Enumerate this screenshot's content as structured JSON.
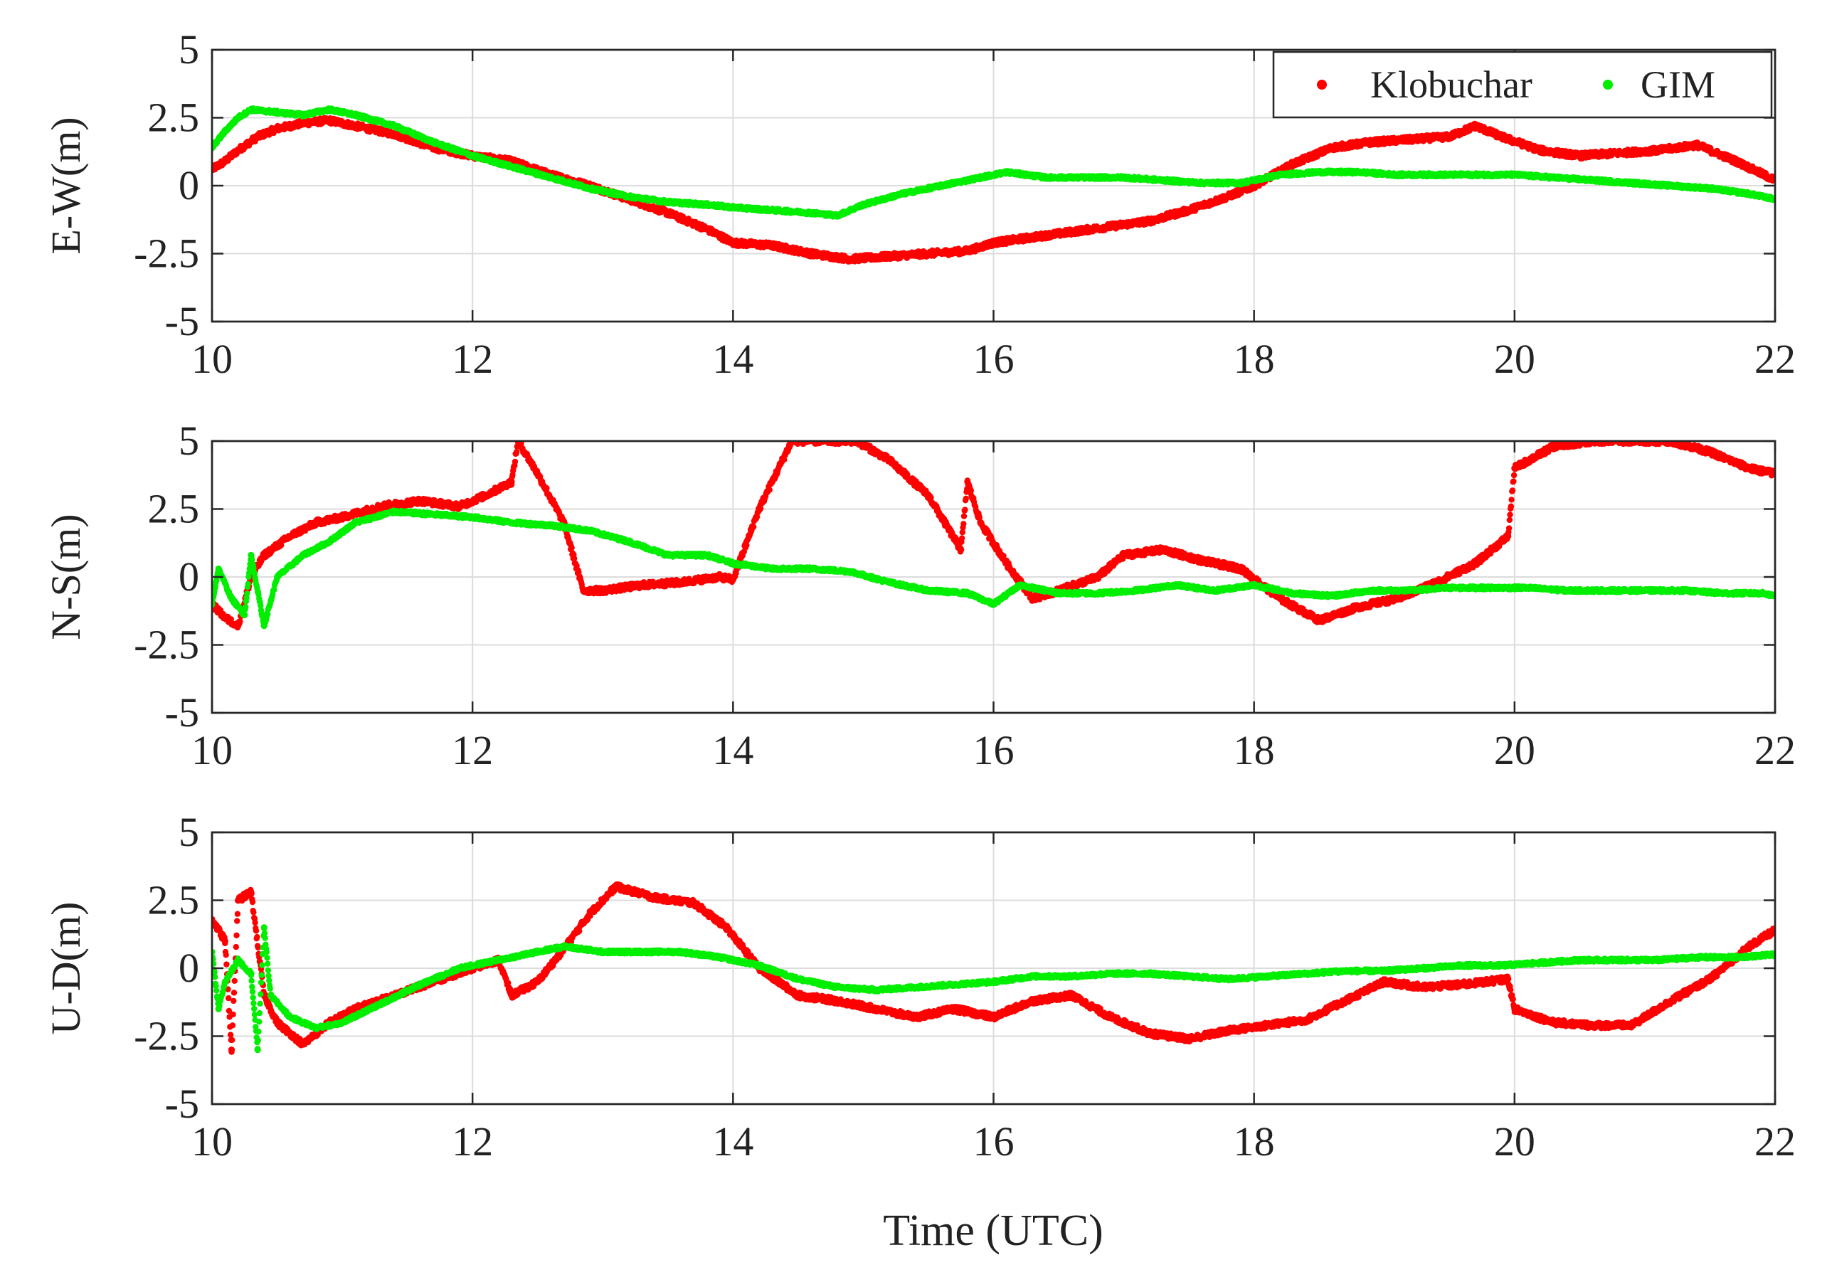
{
  "chart_data": [
    {
      "type": "scatter",
      "panel": "E-W",
      "ylabel": "E-W(m)",
      "xlabel": "",
      "xlim": [
        10,
        22
      ],
      "ylim": [
        -5,
        5
      ],
      "xticks": [
        "10",
        "12",
        "14",
        "16",
        "18",
        "20",
        "22"
      ],
      "yticks": [
        "-5",
        "-2.5",
        "0",
        "2.5",
        "5"
      ],
      "grid": true,
      "legend": {
        "position": "top-right",
        "entries": [
          "Klobuchar",
          "GIM"
        ]
      },
      "series": [
        {
          "name": "Klobuchar",
          "color": "#ff0000",
          "x": [
            10.0,
            10.1,
            10.2,
            10.35,
            10.5,
            10.7,
            10.9,
            11.1,
            11.4,
            11.7,
            12.0,
            12.3,
            12.6,
            12.9,
            13.2,
            13.5,
            13.8,
            14.0,
            14.3,
            14.6,
            14.9,
            15.2,
            15.5,
            15.8,
            16.0,
            16.3,
            16.6,
            16.9,
            17.2,
            17.5,
            17.8,
            18.0,
            18.3,
            18.6,
            18.9,
            19.2,
            19.5,
            19.7,
            19.9,
            20.2,
            20.5,
            20.8,
            21.1,
            21.4,
            21.7,
            22.0
          ],
          "y": [
            0.6,
            0.9,
            1.3,
            1.8,
            2.1,
            2.3,
            2.4,
            2.2,
            1.9,
            1.4,
            1.1,
            0.9,
            0.4,
            0.0,
            -0.5,
            -1.0,
            -1.6,
            -2.1,
            -2.2,
            -2.5,
            -2.7,
            -2.6,
            -2.5,
            -2.4,
            -2.1,
            -1.9,
            -1.7,
            -1.5,
            -1.3,
            -0.9,
            -0.4,
            0.0,
            0.8,
            1.4,
            1.6,
            1.7,
            1.8,
            2.2,
            1.8,
            1.3,
            1.1,
            1.2,
            1.3,
            1.5,
            0.9,
            0.2
          ]
        },
        {
          "name": "GIM",
          "color": "#00ee00",
          "x": [
            10.0,
            10.1,
            10.2,
            10.3,
            10.5,
            10.7,
            10.9,
            11.1,
            11.4,
            11.7,
            12.0,
            12.3,
            12.6,
            12.9,
            13.2,
            13.5,
            13.8,
            14.0,
            14.3,
            14.6,
            14.8,
            15.0,
            15.3,
            15.6,
            15.9,
            16.1,
            16.4,
            16.7,
            17.0,
            17.3,
            17.6,
            17.9,
            18.2,
            18.5,
            18.8,
            19.1,
            19.4,
            19.7,
            20.0,
            20.3,
            20.6,
            20.9,
            21.2,
            21.5,
            21.8,
            22.0
          ],
          "y": [
            1.4,
            2.0,
            2.5,
            2.8,
            2.7,
            2.6,
            2.8,
            2.6,
            2.2,
            1.6,
            1.1,
            0.7,
            0.3,
            -0.1,
            -0.4,
            -0.6,
            -0.7,
            -0.8,
            -0.9,
            -1.0,
            -1.1,
            -0.7,
            -0.3,
            0.0,
            0.3,
            0.5,
            0.3,
            0.3,
            0.3,
            0.2,
            0.1,
            0.1,
            0.4,
            0.5,
            0.5,
            0.4,
            0.4,
            0.4,
            0.4,
            0.3,
            0.2,
            0.1,
            0.0,
            -0.1,
            -0.3,
            -0.5
          ]
        }
      ]
    },
    {
      "type": "scatter",
      "panel": "N-S",
      "ylabel": "N-S(m)",
      "xlabel": "",
      "xlim": [
        10,
        22
      ],
      "ylim": [
        -5,
        5
      ],
      "xticks": [
        "10",
        "12",
        "14",
        "16",
        "18",
        "20",
        "22"
      ],
      "yticks": [
        "-5",
        "-2.5",
        "0",
        "2.5",
        "5"
      ],
      "grid": true,
      "series": [
        {
          "name": "Klobuchar",
          "color": "#ff0000",
          "x": [
            10.0,
            10.1,
            10.2,
            10.3,
            10.4,
            10.6,
            10.8,
            11.0,
            11.3,
            11.6,
            11.9,
            12.1,
            12.3,
            12.35,
            12.5,
            12.7,
            12.85,
            13.0,
            13.3,
            13.6,
            13.9,
            14.0,
            14.2,
            14.45,
            14.95,
            15.2,
            15.5,
            15.75,
            15.8,
            15.9,
            16.1,
            16.3,
            16.5,
            16.8,
            17.0,
            17.3,
            17.6,
            17.9,
            18.2,
            18.5,
            18.8,
            19.1,
            19.4,
            19.7,
            19.95,
            20.0,
            20.3,
            20.6,
            20.9,
            21.2,
            21.5,
            21.8,
            22.0
          ],
          "y": [
            -1.0,
            -1.5,
            -1.8,
            0.0,
            0.8,
            1.5,
            2.0,
            2.2,
            2.6,
            2.8,
            2.6,
            3.0,
            3.5,
            5.0,
            3.8,
            2.0,
            -0.5,
            -0.5,
            -0.3,
            -0.2,
            0.0,
            -0.1,
            2.5,
            5.0,
            5.0,
            4.3,
            3.0,
            1.0,
            3.5,
            2.0,
            0.5,
            -0.8,
            -0.5,
            0.0,
            0.8,
            1.0,
            0.6,
            0.3,
            -0.8,
            -1.6,
            -1.1,
            -0.8,
            -0.2,
            0.5,
            1.5,
            4.0,
            4.8,
            5.0,
            5.0,
            5.0,
            4.6,
            4.0,
            3.8
          ]
        },
        {
          "name": "GIM",
          "color": "#00ee00",
          "x": [
            10.0,
            10.05,
            10.15,
            10.25,
            10.3,
            10.4,
            10.5,
            10.7,
            10.9,
            11.1,
            11.4,
            11.7,
            12.0,
            12.3,
            12.6,
            12.9,
            13.2,
            13.5,
            13.8,
            14.0,
            14.3,
            14.6,
            14.9,
            15.2,
            15.5,
            15.8,
            16.0,
            16.2,
            16.5,
            16.8,
            17.1,
            17.4,
            17.7,
            18.0,
            18.3,
            18.6,
            18.9,
            19.2,
            19.5,
            19.8,
            20.1,
            20.4,
            20.7,
            21.0,
            21.3,
            21.6,
            21.9,
            22.0
          ],
          "y": [
            -1.0,
            0.3,
            -0.8,
            -1.4,
            0.8,
            -1.8,
            0.0,
            0.8,
            1.3,
            2.0,
            2.4,
            2.3,
            2.2,
            2.0,
            1.9,
            1.7,
            1.3,
            0.8,
            0.8,
            0.5,
            0.3,
            0.3,
            0.2,
            -0.2,
            -0.5,
            -0.6,
            -1.0,
            -0.3,
            -0.6,
            -0.6,
            -0.5,
            -0.3,
            -0.5,
            -0.3,
            -0.6,
            -0.7,
            -0.5,
            -0.5,
            -0.4,
            -0.4,
            -0.4,
            -0.5,
            -0.5,
            -0.5,
            -0.5,
            -0.6,
            -0.6,
            -0.7
          ]
        }
      ]
    },
    {
      "type": "scatter",
      "panel": "U-D",
      "ylabel": "U-D(m)",
      "xlabel": "Time (UTC)",
      "xlim": [
        10,
        22
      ],
      "ylim": [
        -5,
        5
      ],
      "xticks": [
        "10",
        "12",
        "14",
        "16",
        "18",
        "20",
        "22"
      ],
      "yticks": [
        "-5",
        "-2.5",
        "0",
        "2.5",
        "5"
      ],
      "grid": true,
      "series": [
        {
          "name": "Klobuchar",
          "color": "#ff0000",
          "x": [
            10.0,
            10.1,
            10.15,
            10.2,
            10.3,
            10.4,
            10.5,
            10.7,
            10.9,
            11.1,
            11.4,
            11.7,
            12.0,
            12.2,
            12.3,
            12.5,
            12.7,
            12.9,
            13.1,
            13.4,
            13.7,
            13.95,
            14.2,
            14.5,
            14.8,
            15.1,
            15.4,
            15.7,
            16.0,
            16.3,
            16.6,
            16.9,
            17.2,
            17.5,
            17.8,
            18.1,
            18.4,
            18.7,
            19.0,
            19.3,
            19.6,
            19.95,
            20.0,
            20.3,
            20.6,
            20.9,
            21.2,
            21.5,
            21.8,
            22.0
          ],
          "y": [
            1.8,
            1.0,
            -3.0,
            2.5,
            2.8,
            -1.0,
            -2.0,
            -2.8,
            -2.0,
            -1.5,
            -1.0,
            -0.5,
            0.0,
            0.3,
            -1.0,
            -0.5,
            0.7,
            2.0,
            3.0,
            2.6,
            2.4,
            1.5,
            0.0,
            -1.0,
            -1.2,
            -1.5,
            -1.8,
            -1.5,
            -1.8,
            -1.2,
            -1.0,
            -1.8,
            -2.4,
            -2.6,
            -2.3,
            -2.1,
            -1.9,
            -1.2,
            -0.5,
            -0.7,
            -0.6,
            -0.4,
            -1.5,
            -2.0,
            -2.1,
            -2.1,
            -1.2,
            -0.4,
            0.8,
            1.4
          ]
        },
        {
          "name": "GIM",
          "color": "#00ee00",
          "x": [
            10.0,
            10.05,
            10.1,
            10.2,
            10.3,
            10.35,
            10.4,
            10.45,
            10.6,
            10.8,
            11.0,
            11.3,
            11.6,
            11.9,
            12.2,
            12.5,
            12.7,
            13.0,
            13.3,
            13.6,
            13.9,
            14.2,
            14.5,
            14.8,
            15.1,
            15.4,
            15.7,
            16.0,
            16.3,
            16.6,
            16.9,
            17.2,
            17.5,
            17.8,
            18.1,
            18.4,
            18.7,
            19.0,
            19.3,
            19.6,
            19.9,
            20.2,
            20.5,
            20.8,
            21.1,
            21.4,
            21.7,
            22.0
          ],
          "y": [
            0.6,
            -1.5,
            -0.5,
            0.3,
            -0.2,
            -3.0,
            1.5,
            -1.0,
            -1.8,
            -2.2,
            -2.0,
            -1.3,
            -0.6,
            0.0,
            0.3,
            0.6,
            0.8,
            0.6,
            0.6,
            0.6,
            0.4,
            0.1,
            -0.4,
            -0.7,
            -0.8,
            -0.7,
            -0.6,
            -0.5,
            -0.3,
            -0.3,
            -0.2,
            -0.2,
            -0.3,
            -0.4,
            -0.3,
            -0.2,
            -0.1,
            -0.1,
            0.0,
            0.1,
            0.1,
            0.2,
            0.3,
            0.3,
            0.3,
            0.4,
            0.4,
            0.5
          ]
        }
      ]
    }
  ]
}
